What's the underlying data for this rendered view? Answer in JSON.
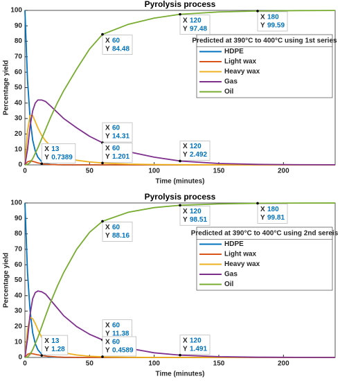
{
  "chart_data": [
    {
      "type": "line",
      "title": "Pyrolysis process",
      "xlabel": "Time (minutes)",
      "ylabel": "Percentage yield",
      "x": [
        0,
        2,
        4,
        6,
        8,
        10,
        13,
        16,
        20,
        25,
        30,
        40,
        50,
        60,
        80,
        100,
        120,
        150,
        180,
        210,
        240
      ],
      "series": [
        {
          "name": "HDPE",
          "color": "#0072bd",
          "values": [
            100,
            55,
            30,
            16,
            9,
            5,
            2,
            1,
            0.3,
            0.1,
            0,
            0,
            0,
            0,
            0,
            0,
            0,
            0,
            0,
            0,
            0
          ]
        },
        {
          "name": "Light wax",
          "color": "#d95319",
          "values": [
            0,
            2,
            2.5,
            2.3,
            1.8,
            1.3,
            0.7389,
            0.45,
            0.25,
            0.1,
            0.05,
            0,
            0,
            0,
            0,
            0,
            0,
            0,
            0,
            0,
            0
          ]
        },
        {
          "name": "Heavy wax",
          "color": "#edb120",
          "values": [
            0,
            22,
            32,
            32,
            28,
            24,
            19,
            15.5,
            12,
            8.5,
            6,
            3,
            1.9,
            1.201,
            0.5,
            0.2,
            0.08,
            0.02,
            0,
            0,
            0
          ]
        },
        {
          "name": "Gas",
          "color": "#7e2f8e",
          "values": [
            0,
            10,
            25,
            35,
            40,
            42,
            42,
            41,
            38,
            34,
            30,
            24,
            18.5,
            14.31,
            8.5,
            5,
            2.492,
            0.9,
            0.3,
            0.1,
            0.05
          ]
        },
        {
          "name": "Oil",
          "color": "#77ac30",
          "values": [
            0,
            0.3,
            1.5,
            4,
            7.5,
            11,
            17,
            23,
            31,
            40,
            48,
            62,
            75,
            84.48,
            91,
            95,
            97.48,
            99,
            99.59,
            99.85,
            99.95
          ]
        }
      ],
      "xlim": [
        0,
        240
      ],
      "ylim": [
        0,
        100
      ],
      "xticks": [
        0,
        50,
        100,
        150,
        200
      ],
      "yticks": [
        0,
        10,
        20,
        30,
        40,
        50,
        60,
        70,
        80,
        90,
        100
      ],
      "legend_title": "Predicted at 390°C to 400°C using 1st series",
      "legend_location": "northeast",
      "datatip_labels": [
        "X",
        "Y"
      ],
      "datatips": [
        {
          "x": 60,
          "y": 84.48
        },
        {
          "x": 120,
          "y": 97.48
        },
        {
          "x": 180,
          "y": 99.59
        },
        {
          "x": 60,
          "y": 14.31
        },
        {
          "x": 13,
          "y": 0.7389
        },
        {
          "x": 60,
          "y": 1.201
        },
        {
          "x": 120,
          "y": 2.492
        }
      ]
    },
    {
      "type": "line",
      "title": "Pyrolysis process",
      "xlabel": "Time (minutes)",
      "ylabel": "Percentage yield",
      "x": [
        0,
        2,
        4,
        6,
        8,
        10,
        13,
        16,
        20,
        25,
        30,
        40,
        50,
        60,
        80,
        100,
        120,
        150,
        180,
        210,
        240
      ],
      "series": [
        {
          "name": "HDPE",
          "color": "#0072bd",
          "values": [
            100,
            55,
            30,
            16,
            9,
            5,
            2,
            1,
            0.3,
            0.1,
            0,
            0,
            0,
            0,
            0,
            0,
            0,
            0,
            0,
            0,
            0
          ]
        },
        {
          "name": "Light wax",
          "color": "#d95319",
          "values": [
            0,
            2,
            2.6,
            2.4,
            2,
            1.7,
            1.28,
            0.9,
            0.6,
            0.3,
            0.15,
            0.05,
            0,
            0,
            0,
            0,
            0,
            0,
            0,
            0,
            0
          ]
        },
        {
          "name": "Heavy wax",
          "color": "#edb120",
          "values": [
            0,
            18,
            26,
            25,
            22,
            18,
            13,
            10,
            7,
            4.5,
            3,
            1.6,
            0.8,
            0.4589,
            0.1,
            0.03,
            0,
            0,
            0,
            0,
            0
          ]
        },
        {
          "name": "Gas",
          "color": "#7e2f8e",
          "values": [
            0,
            12,
            28,
            38,
            42,
            43,
            42.5,
            41,
            37,
            32,
            27,
            20,
            15,
            11.38,
            6,
            3,
            1.491,
            0.5,
            0.15,
            0.05,
            0
          ]
        },
        {
          "name": "Oil",
          "color": "#77ac30",
          "values": [
            0,
            0.3,
            2,
            5,
            9,
            13,
            20,
            27,
            36,
            46,
            55,
            70,
            81,
            88.16,
            94,
            97,
            98.51,
            99.4,
            99.81,
            99.95,
            99.98
          ]
        }
      ],
      "xlim": [
        0,
        240
      ],
      "ylim": [
        0,
        100
      ],
      "xticks": [
        0,
        50,
        100,
        150,
        200
      ],
      "yticks": [
        0,
        10,
        20,
        30,
        40,
        50,
        60,
        70,
        80,
        90,
        100
      ],
      "legend_title": "Predicted at 390°C to 400°C using 2nd sereis",
      "legend_location": "northeast",
      "datatip_labels": [
        "X",
        "Y"
      ],
      "datatips": [
        {
          "x": 60,
          "y": 88.16
        },
        {
          "x": 120,
          "y": 98.51
        },
        {
          "x": 180,
          "y": 99.81
        },
        {
          "x": 60,
          "y": 11.38
        },
        {
          "x": 13,
          "y": 1.28
        },
        {
          "x": 60,
          "y": 0.4589
        },
        {
          "x": 120,
          "y": 1.491
        }
      ]
    }
  ]
}
